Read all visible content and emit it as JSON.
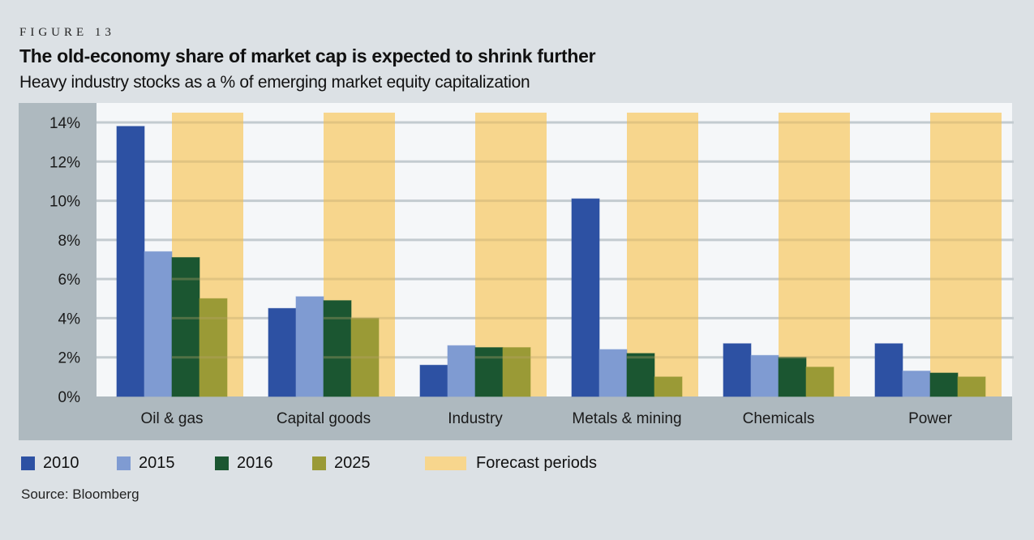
{
  "figure_label": "FIGURE 13",
  "title": "The old-economy share of market cap is expected to shrink further",
  "subtitle": "Heavy industry stocks as a % of emerging market equity capitalization",
  "source": "Source: Bloomberg",
  "colors": {
    "2010": "#2d51a3",
    "2015": "#7f9bd2",
    "2016": "#1b5631",
    "2025": "#9a9a36",
    "forecast": "#f7d68d"
  },
  "legend": [
    {
      "key": "2010",
      "label": "2010"
    },
    {
      "key": "2015",
      "label": "2015"
    },
    {
      "key": "2016",
      "label": "2016"
    },
    {
      "key": "2025",
      "label": "2025"
    },
    {
      "key": "forecast",
      "label": "Forecast periods"
    }
  ],
  "chart_data": {
    "type": "bar",
    "title": "The old-economy share of market cap is expected to shrink further",
    "subtitle": "Heavy industry stocks as a % of emerging market equity capitalization",
    "xlabel": "",
    "ylabel": "",
    "categories": [
      "Oil & gas",
      "Capital goods",
      "Industry",
      "Metals & mining",
      "Chemicals",
      "Power"
    ],
    "series": [
      {
        "name": "2010",
        "values": [
          13.8,
          4.5,
          1.6,
          10.1,
          2.7,
          2.7
        ]
      },
      {
        "name": "2015",
        "values": [
          7.4,
          5.1,
          2.6,
          2.4,
          2.1,
          1.3
        ]
      },
      {
        "name": "2016",
        "values": [
          7.1,
          4.9,
          2.5,
          2.2,
          2.0,
          1.2
        ]
      },
      {
        "name": "2025",
        "values": [
          5.0,
          4.0,
          2.5,
          1.0,
          1.5,
          1.0
        ]
      }
    ],
    "forecast_band": {
      "label": "Forecast periods",
      "covers_series": [
        "2016",
        "2025"
      ],
      "top_value": 14.5
    },
    "ylim": [
      0,
      14
    ],
    "yticks": [
      0,
      2,
      4,
      6,
      8,
      10,
      12,
      14
    ],
    "ytick_labels": [
      "0%",
      "2%",
      "4%",
      "6%",
      "8%",
      "10%",
      "12%",
      "14%"
    ],
    "grid": true,
    "legend_position": "bottom-left"
  }
}
